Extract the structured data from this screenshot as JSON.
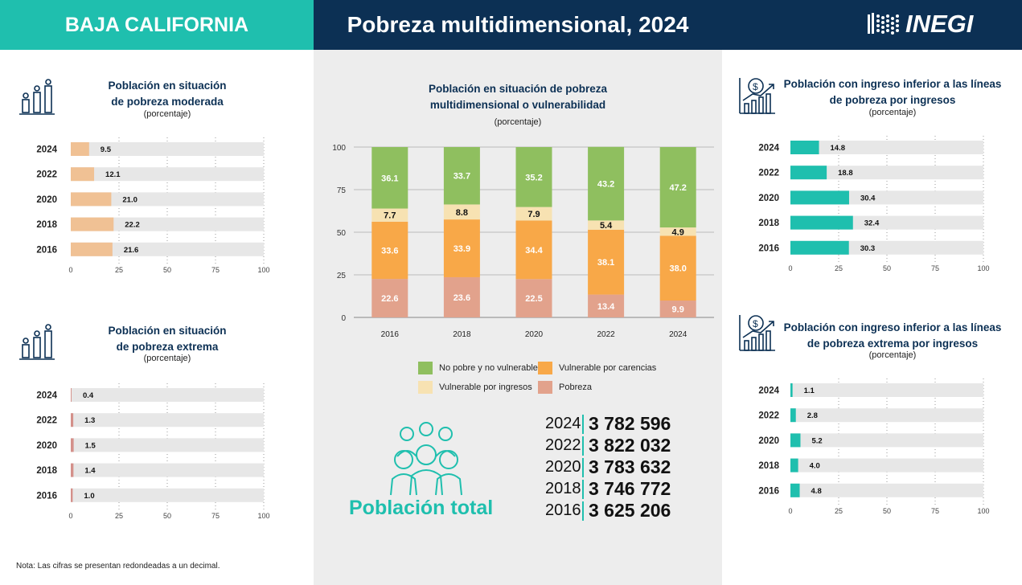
{
  "header": {
    "state": "BAJA CALIFORNIA",
    "title": "Pobreza multidimensional, 2024",
    "logo": "INEGI"
  },
  "colors": {
    "teal": "#1fbfae",
    "navy": "#0c3054",
    "peach": "#f0c194",
    "rose": "#d4908a",
    "green": "#8fbf5f",
    "orange": "#f8a848",
    "cream": "#f7e2b2",
    "pink": "#e2a28c",
    "track": "#e7e7e7"
  },
  "charts": {
    "moderada": {
      "title_line1": "Población en situación",
      "title_line2": "de pobreza moderada",
      "subtitle": "(porcentaje)",
      "icon": "people-group-icon"
    },
    "extrema": {
      "title_line1": "Población en situación",
      "title_line2": "de pobreza extrema",
      "subtitle": "(porcentaje)",
      "icon": "people-group-icon"
    },
    "ingresos": {
      "title_line1": "Población con ingreso inferior a las líneas",
      "title_line2": "de pobreza por ingresos",
      "subtitle": "(porcentaje)",
      "icon": "money-growth-icon"
    },
    "ingresos_extrema": {
      "title_line1": "Población con ingreso inferior a las líneas",
      "title_line2": "de pobreza extrema por ingresos",
      "subtitle": "(porcentaje)",
      "icon": "money-growth-icon"
    },
    "multi": {
      "title_line1": "Población en situación de pobreza",
      "title_line2": "multidimensional o vulnerabilidad",
      "subtitle": "(porcentaje)"
    }
  },
  "chart_data": [
    {
      "type": "bar",
      "orientation": "horizontal",
      "title": "Población en situación de pobreza moderada",
      "categories": [
        "2024",
        "2022",
        "2020",
        "2018",
        "2016"
      ],
      "values": [
        9.5,
        12.1,
        21.0,
        22.2,
        21.6
      ],
      "labels": [
        "9.5",
        "12.1",
        "21.0",
        "22.2",
        "21.6"
      ],
      "xlim": [
        0,
        100
      ],
      "ticks": [
        "0",
        "25",
        "50",
        "75",
        "100"
      ],
      "grid": true
    },
    {
      "type": "bar",
      "orientation": "horizontal",
      "title": "Población en situación de pobreza extrema",
      "categories": [
        "2024",
        "2022",
        "2020",
        "2018",
        "2016"
      ],
      "values": [
        0.4,
        1.3,
        1.5,
        1.4,
        1.0
      ],
      "labels": [
        "0.4",
        "1.3",
        "1.5",
        "1.4",
        "1.0"
      ],
      "xlim": [
        0,
        100
      ],
      "ticks": [
        "0",
        "25",
        "50",
        "75",
        "100"
      ],
      "grid": true
    },
    {
      "type": "bar",
      "orientation": "vertical",
      "stacked": true,
      "title": "Población en situación de pobreza multidimensional o vulnerabilidad",
      "categories": [
        "2016",
        "2018",
        "2020",
        "2022",
        "2024"
      ],
      "ylim": [
        0,
        100
      ],
      "ticks": [
        "0",
        "25",
        "50",
        "75",
        "100"
      ],
      "grid": true,
      "legend_position": "bottom",
      "series": [
        {
          "name": "Pobreza",
          "values": [
            22.6,
            23.6,
            22.5,
            13.4,
            9.9
          ],
          "labels": [
            "22.6",
            "23.6",
            "22.5",
            "13.4",
            "9.9"
          ]
        },
        {
          "name": "Vulnerable por carencias",
          "values": [
            33.6,
            33.9,
            34.4,
            38.1,
            38.0
          ],
          "labels": [
            "33.6",
            "33.9",
            "34.4",
            "38.1",
            "38.0"
          ]
        },
        {
          "name": "Vulnerable por ingresos",
          "values": [
            7.7,
            8.8,
            7.9,
            5.4,
            4.9
          ],
          "labels": [
            "7.7",
            "8.8",
            "7.9",
            "5.4",
            "4.9"
          ]
        },
        {
          "name": "No pobre y no vulnerable",
          "values": [
            36.1,
            33.7,
            35.2,
            43.2,
            47.2
          ],
          "labels": [
            "36.1",
            "33.7",
            "35.2",
            "43.2",
            "47.2"
          ]
        }
      ]
    },
    {
      "type": "bar",
      "orientation": "horizontal",
      "title": "Población con ingreso inferior a las líneas de pobreza por ingresos",
      "categories": [
        "2024",
        "2022",
        "2020",
        "2018",
        "2016"
      ],
      "values": [
        14.8,
        18.8,
        30.4,
        32.4,
        30.3
      ],
      "labels": [
        "14.8",
        "18.8",
        "30.4",
        "32.4",
        "30.3"
      ],
      "xlim": [
        0,
        100
      ],
      "ticks": [
        "0",
        "25",
        "50",
        "75",
        "100"
      ],
      "grid": true
    },
    {
      "type": "bar",
      "orientation": "horizontal",
      "title": "Población con ingreso inferior a las líneas de pobreza extrema por ingresos",
      "categories": [
        "2024",
        "2022",
        "2020",
        "2018",
        "2016"
      ],
      "values": [
        1.1,
        2.8,
        5.2,
        4.0,
        4.8
      ],
      "labels": [
        "1.1",
        "2.8",
        "5.2",
        "4.0",
        "4.8"
      ],
      "xlim": [
        0,
        100
      ],
      "ticks": [
        "0",
        "25",
        "50",
        "75",
        "100"
      ],
      "grid": true
    }
  ],
  "legend": [
    {
      "label": "No pobre y no vulnerable",
      "color": "#8fbf5f"
    },
    {
      "label": "Vulnerable por carencias",
      "color": "#f8a848"
    },
    {
      "label": "Vulnerable por ingresos",
      "color": "#f7e2b2"
    },
    {
      "label": "Pobreza",
      "color": "#e2a28c"
    }
  ],
  "population": {
    "label": "Población total",
    "icon": "people-crowd-icon",
    "rows": [
      {
        "year": "2024",
        "value": "3 782 596"
      },
      {
        "year": "2022",
        "value": "3 822 032"
      },
      {
        "year": "2020",
        "value": "3 783 632"
      },
      {
        "year": "2018",
        "value": "3 746 772"
      },
      {
        "year": "2016",
        "value": "3 625 206"
      }
    ]
  },
  "note": "Nota: Las cifras se presentan redondeadas a un decimal."
}
